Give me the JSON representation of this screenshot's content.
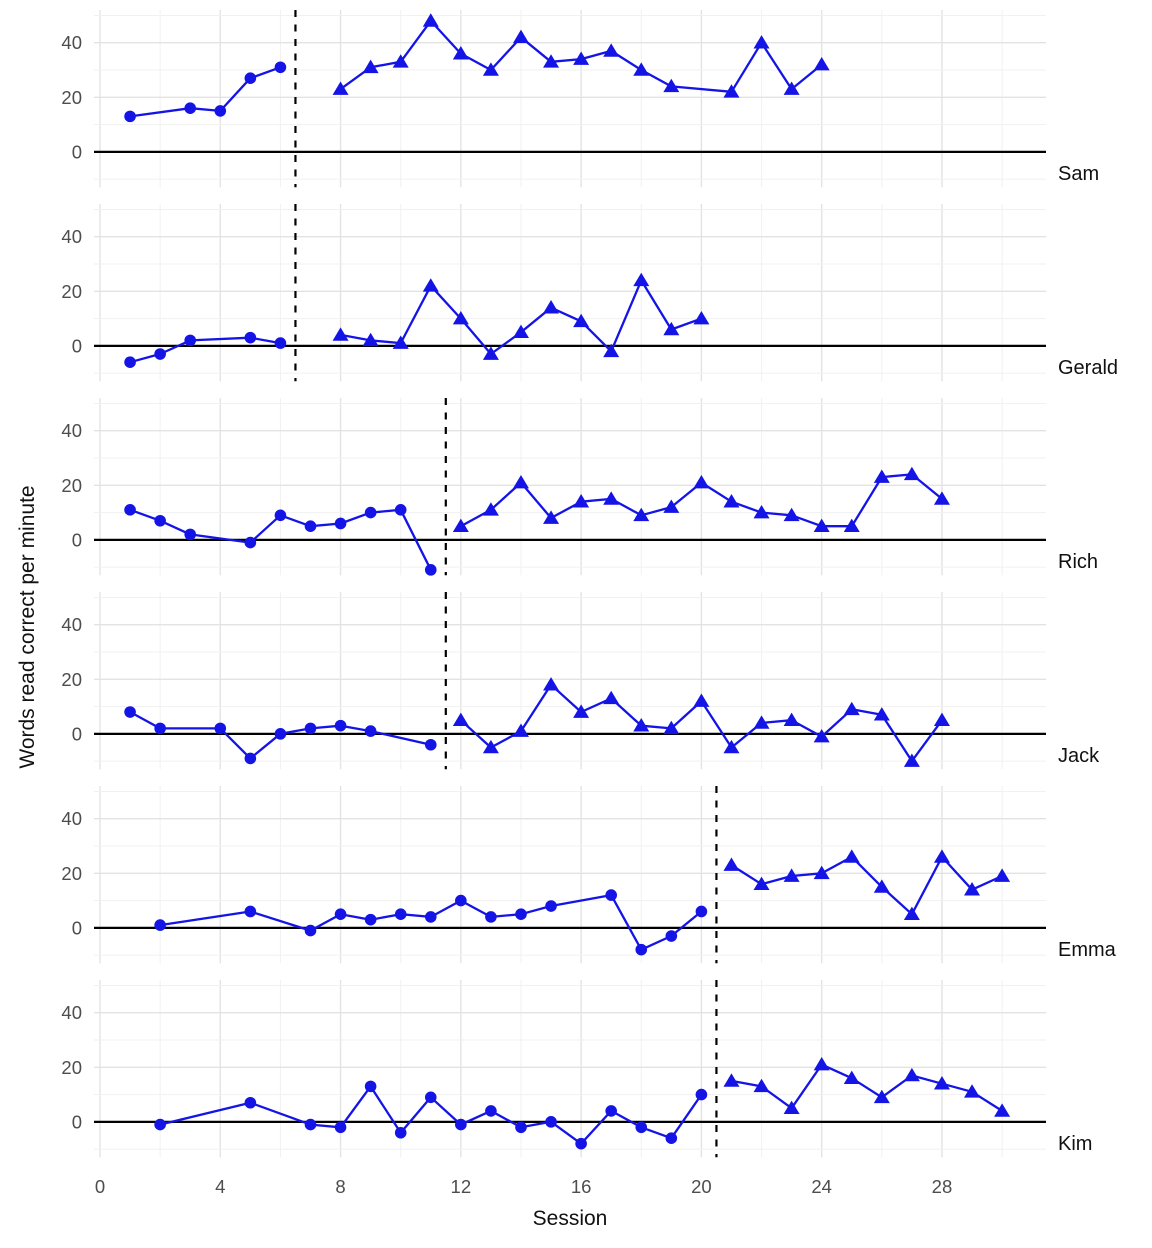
{
  "chart_data": {
    "type": "line",
    "title": "",
    "xlabel": "Session",
    "ylabel": "Words read correct per minute",
    "x_ticks": [
      0,
      4,
      8,
      12,
      16,
      20,
      24,
      28
    ],
    "x_minor_ticks": [
      2,
      6,
      10,
      14,
      18,
      22,
      26,
      30
    ],
    "y_ticks": [
      0,
      20,
      40
    ],
    "y_minor_ticks": [
      -10,
      10,
      30,
      50
    ],
    "x_range": [
      -0.2,
      31.5
    ],
    "panel_y_range": [
      -13,
      52
    ],
    "grid": true,
    "legend": "none",
    "colors": {
      "series": "#1414e6",
      "zero_line": "#000000",
      "phase_line": "#000000",
      "grid_major": "#e3e3e3",
      "grid_minor": "#f1f1f1",
      "tick_text": "#4d4d4d",
      "title_text": "#111111"
    },
    "phase_markers": {
      "baseline": "circle",
      "intervention": "triangle"
    },
    "panels": [
      {
        "name": "Sam",
        "phase_change_x": 6.5,
        "baseline": [
          [
            1,
            13
          ],
          [
            3,
            16
          ],
          [
            4,
            15
          ],
          [
            5,
            27
          ],
          [
            6,
            31
          ]
        ],
        "intervention": [
          [
            8,
            23
          ],
          [
            9,
            31
          ],
          [
            10,
            33
          ],
          [
            11,
            48
          ],
          [
            12,
            36
          ],
          [
            13,
            30
          ],
          [
            14,
            42
          ],
          [
            15,
            33
          ],
          [
            16,
            34
          ],
          [
            17,
            37
          ],
          [
            18,
            30
          ],
          [
            19,
            24
          ],
          [
            21,
            22
          ],
          [
            22,
            40
          ],
          [
            23,
            23
          ],
          [
            24,
            32
          ]
        ]
      },
      {
        "name": "Gerald",
        "phase_change_x": 6.5,
        "baseline": [
          [
            1,
            -6
          ],
          [
            2,
            -3
          ],
          [
            3,
            2
          ],
          [
            5,
            3
          ],
          [
            6,
            1
          ]
        ],
        "intervention": [
          [
            8,
            4
          ],
          [
            9,
            2
          ],
          [
            10,
            1
          ],
          [
            11,
            22
          ],
          [
            12,
            10
          ],
          [
            13,
            -3
          ],
          [
            14,
            5
          ],
          [
            15,
            14
          ],
          [
            16,
            9
          ],
          [
            17,
            -2
          ],
          [
            18,
            24
          ],
          [
            19,
            6
          ],
          [
            20,
            10
          ]
        ]
      },
      {
        "name": "Rich",
        "phase_change_x": 11.5,
        "baseline": [
          [
            1,
            11
          ],
          [
            2,
            7
          ],
          [
            3,
            2
          ],
          [
            5,
            -1
          ],
          [
            6,
            9
          ],
          [
            7,
            5
          ],
          [
            8,
            6
          ],
          [
            9,
            10
          ],
          [
            10,
            11
          ],
          [
            11,
            -11
          ]
        ],
        "intervention": [
          [
            12,
            5
          ],
          [
            13,
            11
          ],
          [
            14,
            21
          ],
          [
            15,
            8
          ],
          [
            16,
            14
          ],
          [
            17,
            15
          ],
          [
            18,
            9
          ],
          [
            19,
            12
          ],
          [
            20,
            21
          ],
          [
            21,
            14
          ],
          [
            22,
            10
          ],
          [
            23,
            9
          ],
          [
            24,
            5
          ],
          [
            25,
            5
          ],
          [
            26,
            23
          ],
          [
            27,
            24
          ],
          [
            28,
            15
          ]
        ]
      },
      {
        "name": "Jack",
        "phase_change_x": 11.5,
        "baseline": [
          [
            1,
            8
          ],
          [
            2,
            2
          ],
          [
            4,
            2
          ],
          [
            5,
            -9
          ],
          [
            6,
            0
          ],
          [
            7,
            2
          ],
          [
            8,
            3
          ],
          [
            9,
            1
          ],
          [
            11,
            -4
          ]
        ],
        "intervention": [
          [
            12,
            5
          ],
          [
            13,
            -5
          ],
          [
            14,
            1
          ],
          [
            15,
            18
          ],
          [
            16,
            8
          ],
          [
            17,
            13
          ],
          [
            18,
            3
          ],
          [
            19,
            2
          ],
          [
            20,
            12
          ],
          [
            21,
            -5
          ],
          [
            22,
            4
          ],
          [
            23,
            5
          ],
          [
            24,
            -1
          ],
          [
            25,
            9
          ],
          [
            26,
            7
          ],
          [
            27,
            -10
          ],
          [
            28,
            5
          ]
        ]
      },
      {
        "name": "Emma",
        "phase_change_x": 20.5,
        "baseline": [
          [
            2,
            1
          ],
          [
            5,
            6
          ],
          [
            7,
            -1
          ],
          [
            8,
            5
          ],
          [
            9,
            3
          ],
          [
            10,
            5
          ],
          [
            11,
            4
          ],
          [
            12,
            10
          ],
          [
            13,
            4
          ],
          [
            14,
            5
          ],
          [
            15,
            8
          ],
          [
            17,
            12
          ],
          [
            18,
            -8
          ],
          [
            19,
            -3
          ],
          [
            20,
            6
          ]
        ],
        "intervention": [
          [
            21,
            23
          ],
          [
            22,
            16
          ],
          [
            23,
            19
          ],
          [
            24,
            20
          ],
          [
            25,
            26
          ],
          [
            26,
            15
          ],
          [
            27,
            5
          ],
          [
            28,
            26
          ],
          [
            29,
            14
          ],
          [
            30,
            19
          ]
        ]
      },
      {
        "name": "Kim",
        "phase_change_x": 20.5,
        "baseline": [
          [
            2,
            -1
          ],
          [
            5,
            7
          ],
          [
            7,
            -1
          ],
          [
            8,
            -2
          ],
          [
            9,
            13
          ],
          [
            10,
            -4
          ],
          [
            11,
            9
          ],
          [
            12,
            -1
          ],
          [
            13,
            4
          ],
          [
            14,
            -2
          ],
          [
            15,
            0
          ],
          [
            16,
            -8
          ],
          [
            17,
            4
          ],
          [
            18,
            -2
          ],
          [
            19,
            -6
          ],
          [
            20,
            10
          ]
        ],
        "intervention": [
          [
            21,
            15
          ],
          [
            22,
            13
          ],
          [
            23,
            5
          ],
          [
            24,
            21
          ],
          [
            25,
            16
          ],
          [
            26,
            9
          ],
          [
            27,
            17
          ],
          [
            28,
            14
          ],
          [
            29,
            11
          ],
          [
            30,
            4
          ]
        ]
      }
    ]
  }
}
